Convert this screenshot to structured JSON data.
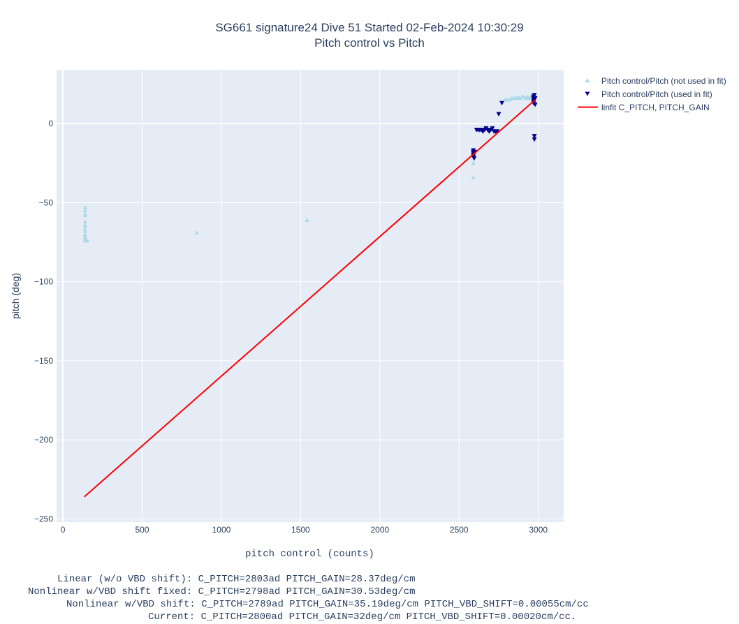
{
  "title": "SG661 signature24 Dive 51 Started 02-Feb-2024 10:30:29",
  "subtitle": "Pitch control vs Pitch",
  "annotations": [
    "Linear (w/o VBD shift): C_PITCH=2803ad PITCH_GAIN=28.37deg/cm",
    "Nonlinear w/VBD shift fixed: C_PITCH=2798ad PITCH_GAIN=30.53deg/cm",
    "Nonlinear w/VBD shift: C_PITCH=2789ad PITCH_GAIN=35.19deg/cm PITCH_VBD_SHIFT=0.00055cm/cc",
    "Current: C_PITCH=2800ad PITCH_GAIN=32deg/cm PITCH_VBD_SHIFT=0.00020cm/cc."
  ],
  "colors": {
    "not_used": "#add8e6",
    "used": "#00008b",
    "fit": "#ff0000",
    "plot_bg": "#e5ecf6",
    "grid": "#ffffff"
  },
  "chart_data": {
    "type": "scatter",
    "xlabel": "pitch control (counts)",
    "ylabel": "pitch (deg)",
    "xlim": [
      -40,
      3160
    ],
    "ylim": [
      -252,
      34
    ],
    "x_ticks": [
      0,
      500,
      1000,
      1500,
      2000,
      2500,
      3000
    ],
    "y_ticks": [
      0,
      -50,
      -100,
      -150,
      -200,
      -250
    ],
    "x_tick_labels": [
      "0",
      "500",
      "1000",
      "1500",
      "2000",
      "2500",
      "3000"
    ],
    "y_tick_labels": [
      "0",
      "−50",
      "−100",
      "−150",
      "−200",
      "−250"
    ],
    "grid": true,
    "legend_position": "top-right outside",
    "series": [
      {
        "name": "Pitch control/Pitch (not used in fit)",
        "marker": "triangle-up",
        "color": "#add8e6",
        "points": [
          [
            140,
            -53
          ],
          [
            140,
            -55
          ],
          [
            140,
            -57
          ],
          [
            140,
            -58
          ],
          [
            140,
            -62
          ],
          [
            140,
            -64
          ],
          [
            140,
            -65
          ],
          [
            140,
            -67
          ],
          [
            140,
            -68
          ],
          [
            140,
            -70
          ],
          [
            140,
            -71
          ],
          [
            140,
            -72
          ],
          [
            140,
            -73
          ],
          [
            140,
            -74
          ],
          [
            145,
            -74
          ],
          [
            155,
            -74
          ],
          [
            845,
            -69
          ],
          [
            1540,
            -61
          ],
          [
            2590,
            -25
          ],
          [
            2590,
            -34
          ],
          [
            2790,
            15
          ],
          [
            2800,
            15
          ],
          [
            2810,
            15
          ],
          [
            2820,
            15
          ],
          [
            2830,
            16
          ],
          [
            2840,
            16
          ],
          [
            2850,
            16
          ],
          [
            2860,
            16
          ],
          [
            2870,
            17
          ],
          [
            2880,
            16
          ],
          [
            2890,
            16
          ],
          [
            2900,
            17
          ],
          [
            2910,
            17
          ],
          [
            2920,
            16
          ],
          [
            2930,
            17
          ],
          [
            2940,
            16
          ],
          [
            2950,
            17
          ],
          [
            2960,
            17
          ],
          [
            2970,
            16
          ]
        ]
      },
      {
        "name": "Pitch control/Pitch (used in fit)",
        "marker": "triangle-down",
        "color": "#00008b",
        "points": [
          [
            2590,
            -17
          ],
          [
            2590,
            -18
          ],
          [
            2590,
            -19
          ],
          [
            2590,
            -20
          ],
          [
            2590,
            -21
          ],
          [
            2595,
            -22
          ],
          [
            2600,
            -18
          ],
          [
            2610,
            -4
          ],
          [
            2620,
            -4
          ],
          [
            2630,
            -4
          ],
          [
            2640,
            -4
          ],
          [
            2650,
            -5
          ],
          [
            2660,
            -4
          ],
          [
            2670,
            -3
          ],
          [
            2680,
            -4
          ],
          [
            2690,
            -5
          ],
          [
            2700,
            -4
          ],
          [
            2710,
            -3
          ],
          [
            2720,
            -5
          ],
          [
            2730,
            -5
          ],
          [
            2740,
            -5
          ],
          [
            2750,
            6
          ],
          [
            2770,
            13
          ],
          [
            2970,
            13
          ],
          [
            2970,
            14
          ],
          [
            2970,
            15
          ],
          [
            2970,
            16
          ],
          [
            2970,
            17
          ],
          [
            2975,
            18
          ],
          [
            2980,
            16
          ],
          [
            2980,
            12
          ],
          [
            2975,
            -8
          ],
          [
            2975,
            -10
          ]
        ]
      },
      {
        "name": "linfit C_PITCH, PITCH_GAIN",
        "marker": "line",
        "color": "#ff0000",
        "points": [
          [
            135,
            -236
          ],
          [
            2980,
            15
          ]
        ]
      }
    ]
  }
}
